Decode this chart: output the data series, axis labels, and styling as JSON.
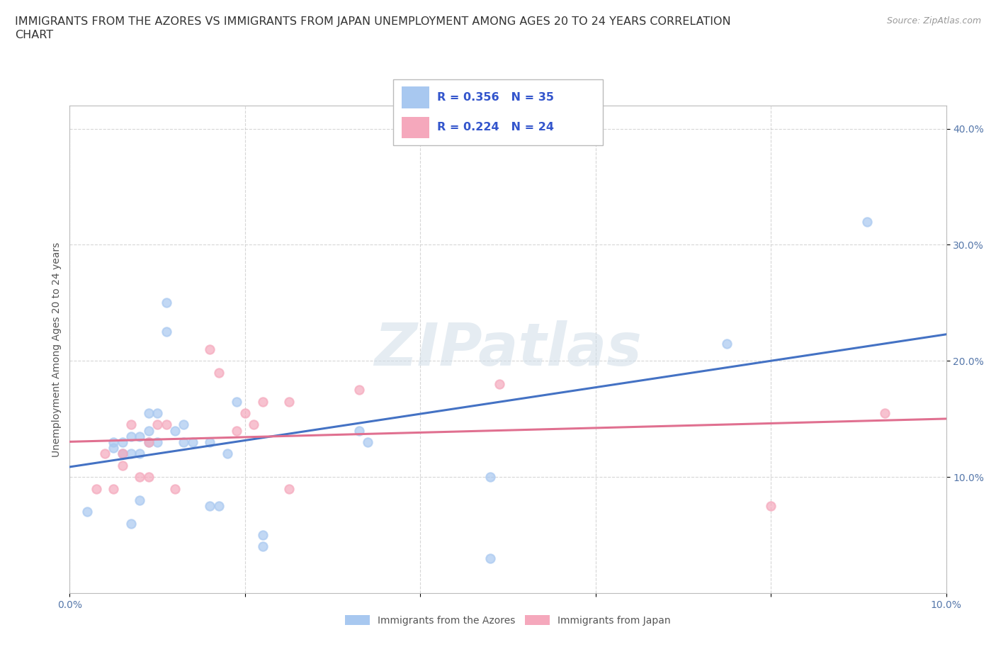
{
  "title_line1": "IMMIGRANTS FROM THE AZORES VS IMMIGRANTS FROM JAPAN UNEMPLOYMENT AMONG AGES 20 TO 24 YEARS CORRELATION",
  "title_line2": "CHART",
  "source": "Source: ZipAtlas.com",
  "ylabel": "Unemployment Among Ages 20 to 24 years",
  "xlim": [
    0.0,
    0.1
  ],
  "ylim": [
    0.0,
    0.42
  ],
  "yticks": [
    0.1,
    0.2,
    0.3,
    0.4
  ],
  "ytick_labels": [
    "10.0%",
    "20.0%",
    "30.0%",
    "40.0%"
  ],
  "xticks": [
    0.0,
    0.02,
    0.04,
    0.06,
    0.08,
    0.1
  ],
  "xtick_labels": [
    "0.0%",
    "",
    "",
    "",
    "",
    "10.0%"
  ],
  "azores_color": "#a8c8f0",
  "japan_color": "#f5a8bc",
  "azores_line_color": "#4472c4",
  "japan_line_color": "#e07090",
  "R_azores": 0.356,
  "N_azores": 35,
  "R_japan": 0.224,
  "N_japan": 24,
  "legend_R_N_color": "#3355cc",
  "watermark": "ZIPatlas",
  "azores_x": [
    0.002,
    0.005,
    0.005,
    0.006,
    0.006,
    0.007,
    0.007,
    0.007,
    0.008,
    0.008,
    0.008,
    0.009,
    0.009,
    0.009,
    0.01,
    0.01,
    0.011,
    0.011,
    0.012,
    0.013,
    0.013,
    0.014,
    0.016,
    0.016,
    0.017,
    0.018,
    0.019,
    0.022,
    0.022,
    0.033,
    0.034,
    0.048,
    0.048,
    0.075,
    0.091
  ],
  "azores_y": [
    0.07,
    0.125,
    0.13,
    0.12,
    0.13,
    0.06,
    0.12,
    0.135,
    0.135,
    0.12,
    0.08,
    0.13,
    0.14,
    0.155,
    0.13,
    0.155,
    0.25,
    0.225,
    0.14,
    0.13,
    0.145,
    0.13,
    0.13,
    0.075,
    0.075,
    0.12,
    0.165,
    0.05,
    0.04,
    0.14,
    0.13,
    0.1,
    0.03,
    0.215,
    0.32
  ],
  "japan_x": [
    0.003,
    0.004,
    0.005,
    0.006,
    0.006,
    0.007,
    0.008,
    0.009,
    0.009,
    0.01,
    0.011,
    0.012,
    0.016,
    0.017,
    0.019,
    0.02,
    0.021,
    0.022,
    0.025,
    0.025,
    0.033,
    0.049,
    0.08,
    0.093
  ],
  "japan_y": [
    0.09,
    0.12,
    0.09,
    0.12,
    0.11,
    0.145,
    0.1,
    0.13,
    0.1,
    0.145,
    0.145,
    0.09,
    0.21,
    0.19,
    0.14,
    0.155,
    0.145,
    0.165,
    0.165,
    0.09,
    0.175,
    0.18,
    0.075,
    0.155
  ],
  "background_color": "#ffffff",
  "grid_color": "#cccccc"
}
